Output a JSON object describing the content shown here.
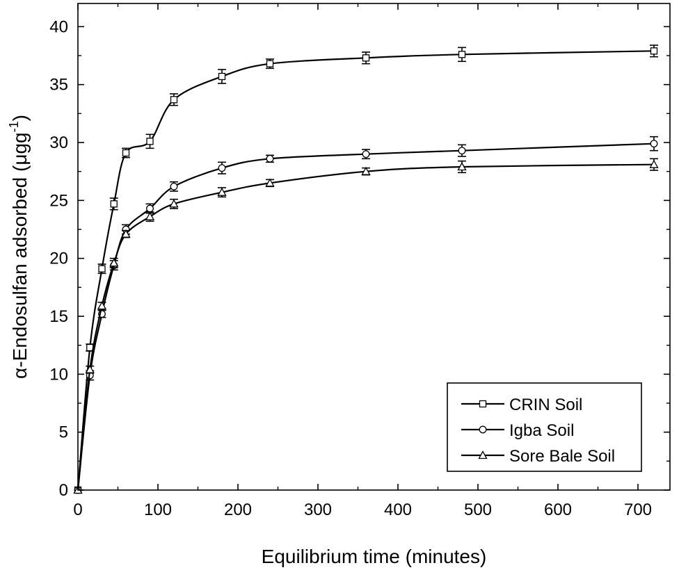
{
  "chart_data": {
    "type": "line",
    "title": "",
    "xlabel": "Equilibrium time (minutes)",
    "ylabel_main": "α-Endosulfan adsorbed (μgg",
    "ylabel_sup": "-1",
    "ylabel_close": ")",
    "xlim": [
      0,
      740
    ],
    "ylim": [
      0,
      42
    ],
    "x_ticks": [
      0,
      100,
      200,
      300,
      400,
      500,
      600,
      700
    ],
    "y_ticks": [
      0,
      5,
      10,
      15,
      20,
      25,
      30,
      35,
      40
    ],
    "grid": false,
    "legend_position": "bottom-right",
    "x": [
      0,
      15,
      30,
      45,
      60,
      90,
      120,
      180,
      240,
      360,
      480,
      720
    ],
    "series": [
      {
        "name": "CRIN Soil",
        "marker": "square",
        "values": [
          0,
          12.3,
          19.1,
          24.7,
          29.1,
          30.1,
          33.7,
          35.7,
          36.8,
          37.3,
          37.6,
          37.9
        ],
        "errors": [
          0,
          0.3,
          0.4,
          0.5,
          0.4,
          0.6,
          0.5,
          0.6,
          0.4,
          0.5,
          0.6,
          0.5
        ]
      },
      {
        "name": "Igba Soil",
        "marker": "circle",
        "values": [
          0,
          9.9,
          15.2,
          19.4,
          22.5,
          24.3,
          26.2,
          27.8,
          28.6,
          29.0,
          29.3,
          29.9
        ],
        "errors": [
          0,
          0.4,
          0.3,
          0.4,
          0.4,
          0.4,
          0.4,
          0.5,
          0.3,
          0.4,
          0.5,
          0.6
        ]
      },
      {
        "name": "Sore Bale Soil",
        "marker": "triangle",
        "values": [
          0,
          10.4,
          15.9,
          19.6,
          22.1,
          23.6,
          24.7,
          25.7,
          26.5,
          27.5,
          27.9,
          28.1
        ],
        "errors": [
          0,
          0.3,
          0.3,
          0.4,
          0.3,
          0.4,
          0.4,
          0.4,
          0.3,
          0.3,
          0.5,
          0.5
        ]
      }
    ]
  }
}
